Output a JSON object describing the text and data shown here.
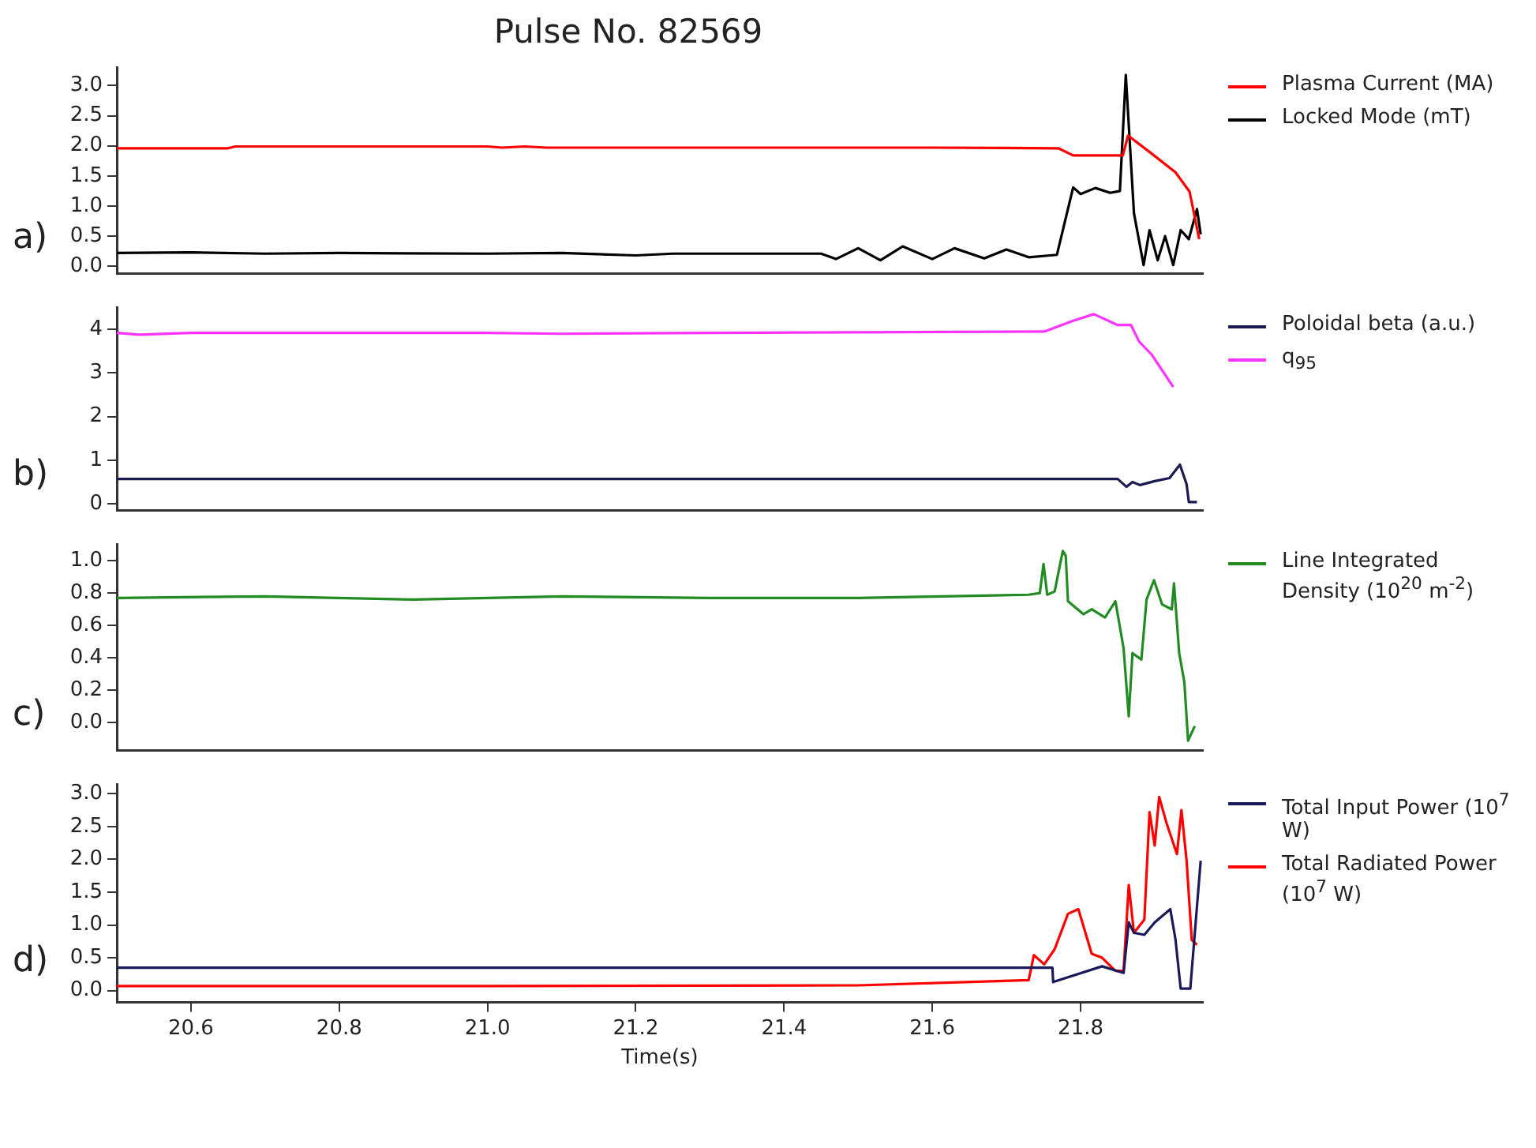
{
  "chart_data": [
    {
      "type": "line",
      "title": "Pulse No. 82569",
      "annotations": [
        "a)"
      ],
      "legend": "right",
      "tick_labels": "y",
      "xlim": [
        20.5,
        21.965
      ],
      "ylim": [
        -0.12,
        3.3
      ],
      "yticks": [
        {
          "value": 0,
          "label": "0.0"
        },
        0.5,
        {
          "value": 1,
          "label": "1.0"
        },
        1.5,
        {
          "value": 2,
          "label": "2.0"
        },
        2.5,
        {
          "value": 3,
          "label": "3.0"
        }
      ],
      "series": [
        {
          "name": "Plasma Current (MA)",
          "color": "#ff0000",
          "x": [
            20.5,
            20.65,
            20.66,
            21.0,
            21.02,
            21.05,
            21.08,
            21.6,
            21.77,
            21.79,
            21.857,
            21.864,
            21.894,
            21.928,
            21.947,
            21.96
          ],
          "values": [
            1.96,
            1.96,
            1.99,
            1.99,
            1.97,
            1.99,
            1.97,
            1.97,
            1.96,
            1.84,
            1.84,
            2.17,
            1.89,
            1.56,
            1.24,
            0.45
          ]
        },
        {
          "name": "Locked Mode (mT)",
          "color": "#000000",
          "x": [
            20.5,
            20.6,
            20.7,
            20.8,
            21.0,
            21.1,
            21.2,
            21.25,
            21.45,
            21.47,
            21.5,
            21.53,
            21.56,
            21.6,
            21.63,
            21.67,
            21.7,
            21.73,
            21.768,
            21.79,
            21.8,
            21.82,
            21.84,
            21.853,
            21.861,
            21.872,
            21.885,
            21.893,
            21.904,
            21.914,
            21.925,
            21.935,
            21.946,
            21.957,
            21.962
          ],
          "values": [
            0.22,
            0.23,
            0.21,
            0.22,
            0.21,
            0.22,
            0.18,
            0.21,
            0.21,
            0.12,
            0.3,
            0.1,
            0.33,
            0.12,
            0.3,
            0.13,
            0.28,
            0.15,
            0.19,
            1.31,
            1.2,
            1.3,
            1.22,
            1.25,
            3.18,
            0.88,
            0.02,
            0.6,
            0.1,
            0.5,
            0.02,
            0.6,
            0.45,
            0.95,
            0.53
          ]
        }
      ]
    },
    {
      "type": "line",
      "annotations": [
        "b)"
      ],
      "legend": "right",
      "tick_labels": "y",
      "xlim": [
        20.5,
        21.965
      ],
      "ylim": [
        -0.15,
        4.5
      ],
      "yticks": [
        0,
        1,
        2,
        3,
        4
      ],
      "series": [
        {
          "name": "Poloidal beta (a.u.)",
          "color": "#1a1a50",
          "x": [
            20.5,
            21.85,
            21.862,
            21.87,
            21.88,
            21.9,
            21.92,
            21.934,
            21.943,
            21.946,
            21.957
          ],
          "values": [
            0.57,
            0.57,
            0.39,
            0.5,
            0.43,
            0.52,
            0.59,
            0.9,
            0.45,
            0.04,
            0.04
          ]
        },
        {
          "name": "q$_{95}$",
          "color": "#ff33ff",
          "x": [
            20.5,
            20.53,
            20.6,
            21.0,
            21.1,
            21.3,
            21.751,
            21.79,
            21.818,
            21.85,
            21.868,
            21.879,
            21.896,
            21.925
          ],
          "values": [
            3.92,
            3.88,
            3.92,
            3.92,
            3.9,
            3.92,
            3.95,
            4.2,
            4.35,
            4.1,
            4.1,
            3.72,
            3.42,
            2.68
          ]
        }
      ]
    },
    {
      "type": "line",
      "annotations": [
        "c)"
      ],
      "legend": "right",
      "tick_labels": "y",
      "xlim": [
        20.5,
        21.965
      ],
      "ylim": [
        -0.17,
        1.1
      ],
      "yticks": [
        {
          "value": 0,
          "label": "0.0"
        },
        0.2,
        0.4,
        0.6,
        0.8,
        {
          "value": 1,
          "label": "1.0"
        }
      ],
      "series": [
        {
          "name": "Line Integrated Density (10$^{20}$ m$^{-2}$)",
          "color": "#228b22",
          "x": [
            20.5,
            20.7,
            20.9,
            21.1,
            21.3,
            21.5,
            21.73,
            21.745,
            21.75,
            21.755,
            21.765,
            21.776,
            21.78,
            21.783,
            21.804,
            21.815,
            21.833,
            21.847,
            21.858,
            21.865,
            21.87,
            21.882,
            21.889,
            21.899,
            21.91,
            21.923,
            21.926,
            21.933,
            21.94,
            21.945,
            21.954
          ],
          "values": [
            0.77,
            0.78,
            0.76,
            0.78,
            0.77,
            0.77,
            0.79,
            0.8,
            0.98,
            0.79,
            0.81,
            1.06,
            1.03,
            0.75,
            0.67,
            0.7,
            0.65,
            0.75,
            0.46,
            0.04,
            0.43,
            0.39,
            0.76,
            0.88,
            0.73,
            0.7,
            0.86,
            0.43,
            0.25,
            -0.11,
            -0.02
          ]
        }
      ]
    },
    {
      "type": "line",
      "annotations": [
        "d)"
      ],
      "legend": "right",
      "xlabel": "Time(s)",
      "xlim": [
        20.5,
        21.965
      ],
      "xticks": [
        20.6,
        20.8,
        {
          "value": 21,
          "label": "21.0"
        },
        21.2,
        21.4,
        21.6,
        21.8
      ],
      "ylim": [
        -0.18,
        3.14
      ],
      "yticks": [
        {
          "value": 0,
          "label": "0.0"
        },
        0.5,
        {
          "value": 1,
          "label": "1.0"
        },
        1.5,
        {
          "value": 2,
          "label": "2.0"
        },
        2.5,
        {
          "value": 3,
          "label": "3.0"
        }
      ],
      "series": [
        {
          "name": "Total Input Power (10$^{7}$ W)",
          "color": "#1a1a5a",
          "x": [
            20.5,
            21.762,
            21.763,
            21.829,
            21.858,
            21.865,
            21.872,
            21.886,
            21.9,
            21.921,
            21.928,
            21.935,
            21.948,
            21.962
          ],
          "values": [
            0.35,
            0.35,
            0.13,
            0.37,
            0.27,
            1.04,
            0.88,
            0.85,
            1.04,
            1.24,
            0.78,
            0.03,
            0.03,
            1.98
          ]
        },
        {
          "name": "Total Radiated Power (10$^{7}$ W)",
          "color": "#ff0000",
          "x": [
            20.5,
            21.0,
            21.5,
            21.73,
            21.737,
            21.751,
            21.765,
            21.783,
            21.797,
            21.815,
            21.829,
            21.847,
            21.858,
            21.865,
            21.872,
            21.886,
            21.893,
            21.9,
            21.906,
            21.916,
            21.93,
            21.936,
            21.943,
            21.95,
            21.957
          ],
          "values": [
            0.07,
            0.07,
            0.08,
            0.16,
            0.54,
            0.4,
            0.63,
            1.17,
            1.24,
            0.56,
            0.5,
            0.3,
            0.3,
            1.61,
            0.88,
            1.08,
            2.72,
            2.21,
            2.95,
            2.55,
            2.08,
            2.75,
            1.98,
            0.77,
            0.7
          ]
        }
      ]
    }
  ]
}
